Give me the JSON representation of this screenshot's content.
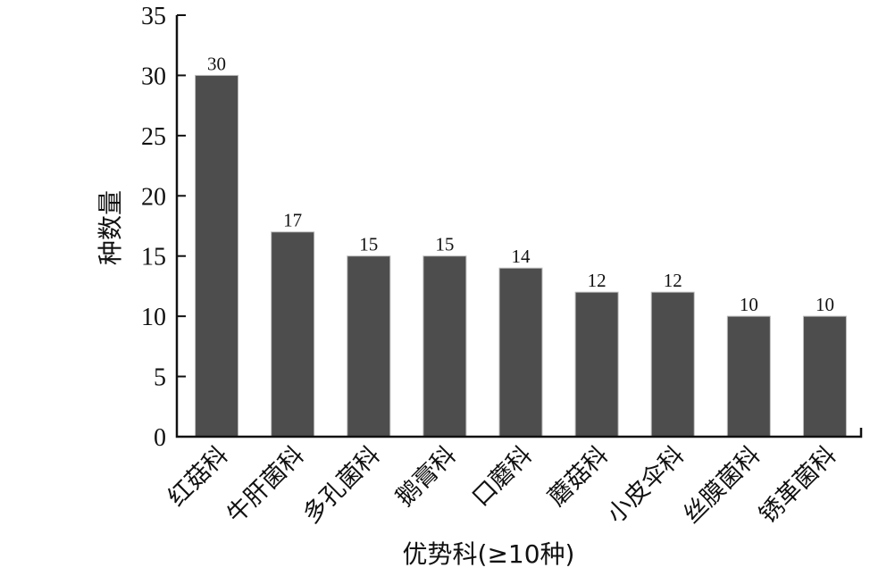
{
  "chart_data": {
    "type": "bar",
    "categories": [
      "红菇科",
      "牛肝菌科",
      "多孔菌科",
      "鹅膏科",
      "口蘑科",
      "蘑菇科",
      "小皮伞科",
      "丝膜菌科",
      "锈革菌科"
    ],
    "values": [
      30,
      17,
      15,
      15,
      14,
      12,
      12,
      10,
      10
    ],
    "data_labels": [
      "30",
      "17",
      "15",
      "15",
      "14",
      "12",
      "12",
      "10",
      "10"
    ],
    "title": "",
    "xlabel": "优势科(≥10种)",
    "ylabel": "种数量",
    "ylim": [
      0,
      35
    ],
    "yticks": [
      0,
      5,
      10,
      15,
      20,
      25,
      30,
      35
    ],
    "grid": false,
    "legend": "none",
    "bar_color": "#4d4d4d"
  }
}
